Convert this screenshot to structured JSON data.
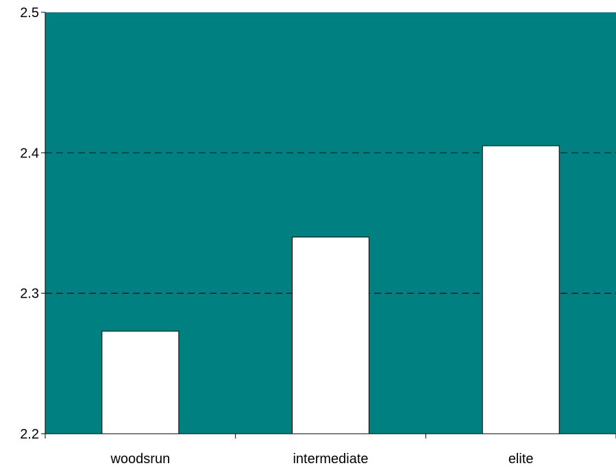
{
  "chart_data": {
    "type": "bar",
    "title": "",
    "xlabel": "",
    "ylabel": "",
    "categories": [
      "woodsrun",
      "intermediate",
      "elite"
    ],
    "values": [
      2.273,
      2.34,
      2.405
    ],
    "ylim": [
      2.2,
      2.5
    ],
    "yticks": [
      2.2,
      2.3,
      2.4,
      2.5
    ],
    "ytick_labels": [
      "2.2",
      "2.3",
      "2.4",
      "2.5"
    ],
    "grid": "horizontal dashed at 2.3 and 2.4",
    "legend": "none",
    "colors": {
      "plot_background": "#008080",
      "bar_fill": "#ffffff",
      "bar_stroke": "#000000",
      "gridline": "#000000"
    }
  }
}
